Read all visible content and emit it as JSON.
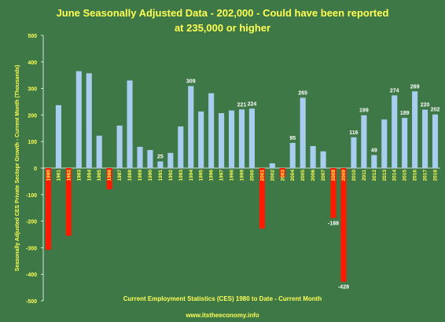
{
  "chart_data": {
    "type": "bar",
    "title_line1": "June Seasonally Adjusted Data - 202,000 - Could have been reported",
    "title_line2": "at 235,000 or higher",
    "xlabel": "Current Employment Statistics (CES) 1980 to Date - Current Month",
    "ylabel": "Seasonally Adjusted CES Private Sectopr Growth - Current Month (Thousands)",
    "ylim": [
      -500,
      500
    ],
    "yticks": [
      -500,
      -400,
      -300,
      -200,
      -100,
      0,
      100,
      200,
      300,
      400,
      500
    ],
    "grid": false,
    "categories": [
      "1980",
      "1981",
      "1982",
      "1983",
      "1984",
      "1985",
      "1986",
      "1987",
      "1988",
      "1989",
      "1990",
      "1991",
      "1992",
      "1993",
      "1994",
      "1995",
      "1996",
      "1997",
      "1998",
      "1999",
      "2000",
      "2001",
      "2002",
      "2003",
      "2004",
      "2005",
      "2006",
      "2007",
      "2008",
      "2009",
      "2010",
      "2011",
      "2012",
      "2013",
      "2014",
      "2015",
      "2016",
      "2017",
      "2018"
    ],
    "values": [
      -308,
      237,
      -255,
      365,
      357,
      122,
      -80,
      160,
      330,
      80,
      68,
      25,
      57,
      157,
      309,
      213,
      282,
      207,
      217,
      221,
      224,
      -228,
      18,
      -35,
      95,
      265,
      83,
      63,
      -188,
      -428,
      116,
      199,
      49,
      183,
      274,
      189,
      289,
      220,
      202
    ],
    "data_labels": {
      "1991": "25",
      "1994": "309",
      "1999": "221",
      "2000": "224",
      "2004": "95",
      "2005": "265",
      "2008": "-188",
      "2009": "-428",
      "2010": "116",
      "2011": "199",
      "2012": "49",
      "2014": "274",
      "2015": "189",
      "2016": "289",
      "2017": "220",
      "2018": "202"
    },
    "colors": {
      "positive": "#a9cdef",
      "negative": "#ff1a00",
      "background": "#3d7846",
      "text": "#ffff55",
      "axis": "#ffffff"
    }
  },
  "footer": {
    "text": "www.itstheeconomy.info"
  }
}
